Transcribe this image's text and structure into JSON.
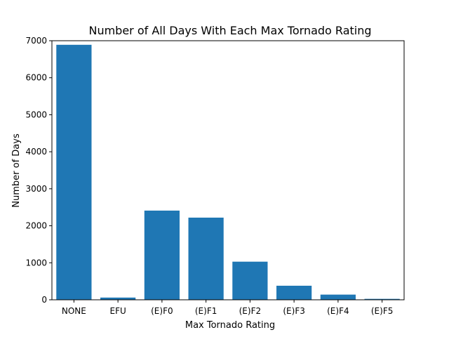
{
  "chart_data": {
    "type": "bar",
    "title": "Number of All Days With Each Max Tornado Rating",
    "xlabel": "Max Tornado Rating",
    "ylabel": "Number of Days",
    "categories": [
      "NONE",
      "EFU",
      "(E)F0",
      "(E)F1",
      "(E)F2",
      "(E)F3",
      "(E)F4",
      "(E)F5"
    ],
    "values": [
      6890,
      60,
      2410,
      2220,
      1030,
      380,
      140,
      25
    ],
    "ylim": [
      0,
      7000
    ],
    "yticks": [
      0,
      1000,
      2000,
      3000,
      4000,
      5000,
      6000,
      7000
    ],
    "ytick_labels": [
      "0",
      "1000",
      "2000",
      "3000",
      "4000",
      "5000",
      "6000",
      "7000"
    ],
    "bar_color": "#1f77b4",
    "grid": false,
    "legend": "none"
  }
}
